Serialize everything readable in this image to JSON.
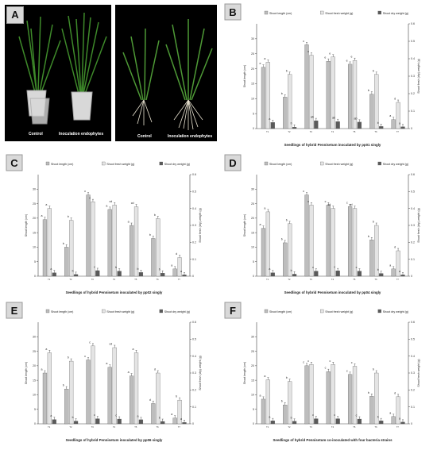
{
  "panels": {
    "A": {
      "label": "A",
      "photo1": {
        "captions": [
          "Control",
          "Inoculation endophytes"
        ]
      },
      "photo2": {
        "captions": [
          "Control",
          "Inoculation endophytes"
        ]
      }
    }
  },
  "chart_data": [
    {
      "panel": "B",
      "type": "bar",
      "legend": [
        "Shoot length (cm)",
        "Shoot fresh weight (g)",
        "Shoot dry weight (g)"
      ],
      "xlabel": "Seedlings of hybrid Pennisetum inoculated by pp01 singly",
      "ylabel_left": "Shoot length (cm)",
      "ylabel_right": "Shoot fresh (dry) weight (g)",
      "ylim_left": [
        0,
        35
      ],
      "ylim_right": [
        0,
        0.6
      ],
      "left_ticks": [
        "0",
        "5",
        "10",
        "15",
        "20",
        "25",
        "30"
      ],
      "right_ticks": [
        "0",
        "0.1",
        "0.2",
        "0.3",
        "0.4",
        "0.5",
        "0.6"
      ],
      "categories": [
        "T1",
        "T2",
        "T3",
        "T4",
        "T5",
        "T6",
        "T7"
      ],
      "series": [
        {
          "values": [
            20.5,
            10.5,
            28.0,
            22.5,
            21.5,
            11.5,
            3.0
          ],
          "letters": [
            "e",
            "b",
            "c",
            "e",
            "e",
            "b",
            "a"
          ]
        },
        {
          "values": [
            0.38,
            0.31,
            0.42,
            0.41,
            0.39,
            0.31,
            0.15
          ],
          "letters": [
            "a",
            "b",
            "c",
            "e",
            "e",
            "b",
            "d"
          ]
        },
        {
          "values": [
            0.035,
            0.008,
            0.045,
            0.04,
            0.037,
            0.012,
            0.01
          ],
          "letters": [
            "a",
            "b",
            "ab",
            "ab",
            "ab",
            "b",
            "a"
          ]
        }
      ]
    },
    {
      "panel": "C",
      "type": "bar",
      "legend": [
        "Shoot length (cm)",
        "Shoot fresh weight (g)",
        "Shoot dry weight (g)"
      ],
      "xlabel": "Seedlings of hybrid Pennisetum inoculated by pp02 singly",
      "ylabel_left": "Shoot length (cm)",
      "ylabel_right": "Shoot fresh (dry) weight (g)",
      "ylim_left": [
        0,
        35
      ],
      "ylim_right": [
        0,
        0.6
      ],
      "left_ticks": [
        "0",
        "5",
        "10",
        "15",
        "20",
        "25",
        "30"
      ],
      "right_ticks": [
        "0",
        "0.1",
        "0.2",
        "0.3",
        "0.4",
        "0.5",
        "0.6"
      ],
      "categories": [
        "T1",
        "T2",
        "T3",
        "T4",
        "T5",
        "T6",
        "T7"
      ],
      "series": [
        {
          "values": [
            19.5,
            10.0,
            28.0,
            23.0,
            17.5,
            13.0,
            2.5
          ],
          "letters": [
            "a",
            "b",
            "c",
            "a",
            "a",
            "b",
            "a"
          ]
        },
        {
          "values": [
            0.4,
            0.33,
            0.44,
            0.42,
            0.41,
            0.34,
            0.11
          ],
          "letters": [
            "a",
            "b",
            "c",
            "cd",
            "cd",
            "b",
            "d"
          ]
        },
        {
          "values": [
            0.02,
            0.01,
            0.033,
            0.03,
            0.022,
            0.018,
            0.008
          ],
          "letters": [
            "a",
            "b",
            "c",
            "b",
            "b",
            "b",
            "a"
          ]
        }
      ]
    },
    {
      "panel": "D",
      "type": "bar",
      "legend": [
        "Shoot length (cm)",
        "Shoot fresh weight (g)",
        "Shoot dry weight (g)"
      ],
      "xlabel": "Seedlings of hybrid Pennisetum inoculated by pp04 singly",
      "ylabel_left": "Shoot length (cm)",
      "ylabel_right": "Shoot fresh (dry) weight (g)",
      "ylim_left": [
        0,
        35
      ],
      "ylim_right": [
        0,
        0.6
      ],
      "left_ticks": [
        "0",
        "5",
        "10",
        "15",
        "20",
        "25",
        "30"
      ],
      "right_ticks": [
        "0",
        "0.1",
        "0.2",
        "0.3",
        "0.4",
        "0.5",
        "0.6"
      ],
      "categories": [
        "T1",
        "T2",
        "T3",
        "T4",
        "T5",
        "T6",
        "T7"
      ],
      "series": [
        {
          "values": [
            16.5,
            11.5,
            28.0,
            24.5,
            24.0,
            12.5,
            2.5
          ],
          "letters": [
            "a",
            "b",
            "c",
            "c",
            "c",
            "b",
            "a"
          ]
        },
        {
          "values": [
            0.38,
            0.31,
            0.42,
            0.4,
            0.4,
            0.3,
            0.15
          ],
          "letters": [
            "a",
            "b",
            "c",
            "cd",
            "cd",
            "b",
            "d"
          ]
        },
        {
          "values": [
            0.02,
            0.012,
            0.03,
            0.032,
            0.03,
            0.016,
            0.008
          ],
          "letters": [
            "a",
            "b",
            "c",
            "c",
            "c",
            "b",
            "a"
          ]
        }
      ]
    },
    {
      "panel": "E",
      "type": "bar",
      "legend": [
        "Shoot length (cm)",
        "Shoot fresh weight (g)",
        "Shoot dry weight (g)"
      ],
      "xlabel": "Seedlings of hybrid Pennisetum inoculated by pp06 singly",
      "ylabel_left": "Shoot length (cm)",
      "ylabel_right": "Shoot fresh (dry) weight (g)",
      "ylim_left": [
        0,
        35
      ],
      "ylim_right": [
        0,
        0.6
      ],
      "left_ticks": [
        "0",
        "5",
        "10",
        "15",
        "20",
        "25",
        "30"
      ],
      "right_ticks": [
        "0",
        "0.1",
        "0.2",
        "0.3",
        "0.4",
        "0.5",
        "0.6"
      ],
      "categories": [
        "T1",
        "T2",
        "T3",
        "T4",
        "T5",
        "T6",
        "T7"
      ],
      "series": [
        {
          "values": [
            17.5,
            12.0,
            22.0,
            19.5,
            16.5,
            7.0,
            2.0
          ],
          "letters": [
            "a",
            "b",
            "c",
            "a",
            "a",
            "d",
            "a"
          ]
        },
        {
          "values": [
            0.42,
            0.37,
            0.46,
            0.45,
            0.42,
            0.3,
            0.14
          ],
          "letters": [
            "a",
            "b",
            "c",
            "cd",
            "a",
            "d",
            "b"
          ]
        },
        {
          "values": [
            0.025,
            0.016,
            0.03,
            0.028,
            0.024,
            0.014,
            0.008
          ],
          "letters": [
            "a",
            "b",
            "c",
            "c",
            "a",
            "b",
            "a"
          ]
        }
      ]
    },
    {
      "panel": "F",
      "type": "bar",
      "legend": [
        "Shoot length (cm)",
        "Shoot fresh weight (g)",
        "Shoot dry weight (g)"
      ],
      "xlabel": "Seedlings of hybrid Pennisetum co-inoculated with four bacteria strains",
      "ylabel_left": "Shoot length (cm)",
      "ylabel_right": "Shoot fresh weight (g)",
      "ylim_left": [
        0,
        35
      ],
      "ylim_right": [
        0,
        0.6
      ],
      "left_ticks": [
        "0",
        "5",
        "10",
        "15",
        "20",
        "25",
        "30"
      ],
      "right_ticks": [
        "0",
        "0.1",
        "0.2",
        "0.3",
        "0.4",
        "0.5",
        "0.6"
      ],
      "categories": [
        "T1",
        "T2",
        "T3",
        "T4",
        "T5",
        "T6",
        "T7"
      ],
      "series": [
        {
          "values": [
            8.5,
            6.5,
            20.0,
            18.0,
            17.0,
            9.5,
            2.5
          ],
          "letters": [
            "a",
            "b",
            "c",
            "c",
            "c",
            "b",
            "a"
          ]
        },
        {
          "values": [
            0.26,
            0.25,
            0.35,
            0.35,
            0.34,
            0.3,
            0.16
          ],
          "letters": [
            "a",
            "b",
            "c",
            "c",
            "c",
            "b",
            "d"
          ]
        },
        {
          "values": [
            0.018,
            0.015,
            0.03,
            0.03,
            0.028,
            0.018,
            0.01
          ],
          "letters": [
            "a",
            "b",
            "c",
            "c",
            "c",
            "b",
            "a"
          ]
        }
      ]
    }
  ],
  "colors": {
    "series": [
      "#bdbdbd",
      "#e4e4e4",
      "#5a5a5a"
    ],
    "label_box": "#d9d9d9",
    "photo_bg": "#000000"
  }
}
